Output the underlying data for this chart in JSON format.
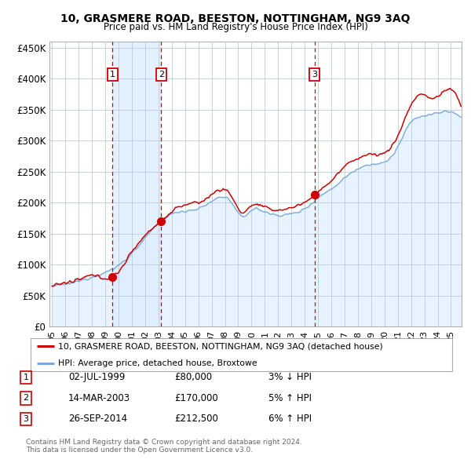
{
  "title": "10, GRASMERE ROAD, BEESTON, NOTTINGHAM, NG9 3AQ",
  "subtitle": "Price paid vs. HM Land Registry's House Price Index (HPI)",
  "legend_property": "10, GRASMERE ROAD, BEESTON, NOTTINGHAM, NG9 3AQ (detached house)",
  "legend_hpi": "HPI: Average price, detached house, Broxtowe",
  "footer1": "Contains HM Land Registry data © Crown copyright and database right 2024.",
  "footer2": "This data is licensed under the Open Government Licence v3.0.",
  "transactions": [
    {
      "num": 1,
      "date": "02-JUL-1999",
      "price": 80000,
      "pct": "3%",
      "dir": "↓",
      "year": 1999.54
    },
    {
      "num": 2,
      "date": "14-MAR-2003",
      "price": 170000,
      "pct": "5%",
      "dir": "↑",
      "year": 2003.2
    },
    {
      "num": 3,
      "date": "26-SEP-2014",
      "price": 212500,
      "pct": "6%",
      "dir": "↑",
      "year": 2014.74
    }
  ],
  "property_color": "#cc0000",
  "hpi_color": "#7aaadd",
  "hpi_fill_color": "#ddeeff",
  "vline_color": "#cc0000",
  "shade_color": "#ddeeff",
  "dot_color": "#cc0000",
  "grid_color": "#bbccdd",
  "background_color": "#ffffff",
  "ylim": [
    0,
    460000
  ],
  "yticks": [
    0,
    50000,
    100000,
    150000,
    200000,
    250000,
    300000,
    350000,
    400000,
    450000
  ],
  "xlim_start": 1994.8,
  "xlim_end": 2025.8,
  "xticks": [
    1995,
    1996,
    1997,
    1998,
    1999,
    2000,
    2001,
    2002,
    2003,
    2004,
    2005,
    2006,
    2007,
    2008,
    2009,
    2010,
    2011,
    2012,
    2013,
    2014,
    2015,
    2016,
    2017,
    2018,
    2019,
    2020,
    2021,
    2022,
    2023,
    2024,
    2025
  ]
}
